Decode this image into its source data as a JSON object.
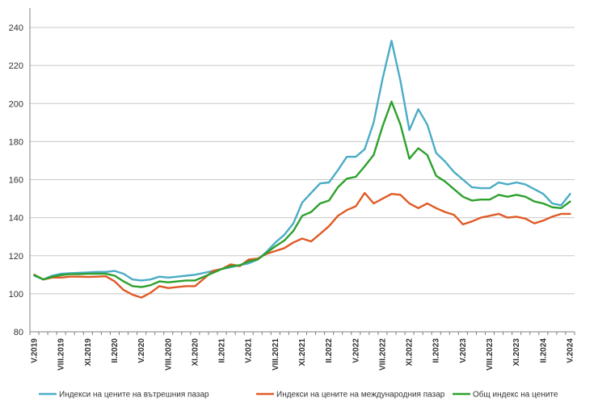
{
  "chart_data": {
    "type": "line",
    "title": "",
    "xlabel": "",
    "ylabel": "",
    "ylim": [
      80,
      250
    ],
    "yticks": [
      80,
      100,
      120,
      140,
      160,
      180,
      200,
      220,
      240
    ],
    "grid": true,
    "legend_position": "bottom",
    "x_tick_labels": [
      "V.2019",
      "VIII.2019",
      "XI.2019",
      "II.2020",
      "V.2020",
      "VIII.2020",
      "XI.2020",
      "II.2021",
      "V.2021",
      "VIII.2021",
      "XI.2021",
      "II.2022",
      "V.2022",
      "VIII.2022",
      "XI.2022",
      "II.2023",
      "V.2023",
      "VIII.2023",
      "XI.2023",
      "II.2024",
      "V.2024"
    ],
    "series": [
      {
        "name": "Индекси на цените на вътрешния пазар",
        "color": "#4BACC6",
        "values": [
          109.5,
          107.5,
          109.5,
          110.5,
          110.8,
          111,
          111.2,
          111.5,
          111.5,
          112,
          110.5,
          107.5,
          107,
          107.5,
          109,
          108.5,
          109,
          109.5,
          110,
          111,
          112,
          113,
          114,
          115,
          116,
          118,
          122,
          127,
          131,
          137,
          148,
          153,
          158,
          158.5,
          165,
          172,
          172,
          176,
          190,
          213,
          233,
          212,
          186,
          197,
          189,
          174,
          169.5,
          164,
          160,
          156,
          155.5,
          155.5,
          158.5,
          157.5,
          158.5,
          157.5,
          155,
          152.5,
          147.5,
          146.5,
          152.5
        ]
      },
      {
        "name": "Индекси на цените на международния пазар",
        "color": "#E05A26",
        "values": [
          110,
          107.5,
          108.5,
          108.5,
          109,
          109,
          108.8,
          109,
          109.2,
          106.5,
          102,
          99.5,
          98,
          100.5,
          104,
          103,
          103.5,
          104,
          104,
          108,
          112,
          113,
          115.5,
          114.5,
          118,
          118.5,
          121,
          122.5,
          124,
          127,
          129,
          127.5,
          131.5,
          135.5,
          141,
          144,
          146,
          153,
          147.5,
          150,
          152.5,
          152,
          147.5,
          145,
          147.5,
          145,
          143,
          141.5,
          136.5,
          138,
          140,
          141,
          142,
          140,
          140.5,
          139.5,
          137,
          138.5,
          140.5,
          142,
          142
        ]
      },
      {
        "name": "Общ индекс на цените",
        "color": "#2DA02D",
        "values": [
          109.8,
          107.5,
          109,
          109.8,
          110.3,
          110.3,
          110.5,
          110.5,
          110.5,
          109.5,
          106.5,
          104,
          103.5,
          104.5,
          106.5,
          106,
          106.5,
          107,
          107,
          109,
          111,
          113,
          114.5,
          115,
          117,
          118,
          121.5,
          125,
          128,
          133,
          141,
          143,
          147.5,
          149,
          156,
          160.5,
          161.5,
          167,
          173,
          188,
          201,
          189,
          171,
          176.5,
          173,
          162,
          159,
          155,
          151,
          149,
          149.5,
          149.5,
          152,
          151,
          152,
          151,
          148.5,
          147.5,
          145.5,
          145,
          148.5
        ]
      }
    ]
  }
}
